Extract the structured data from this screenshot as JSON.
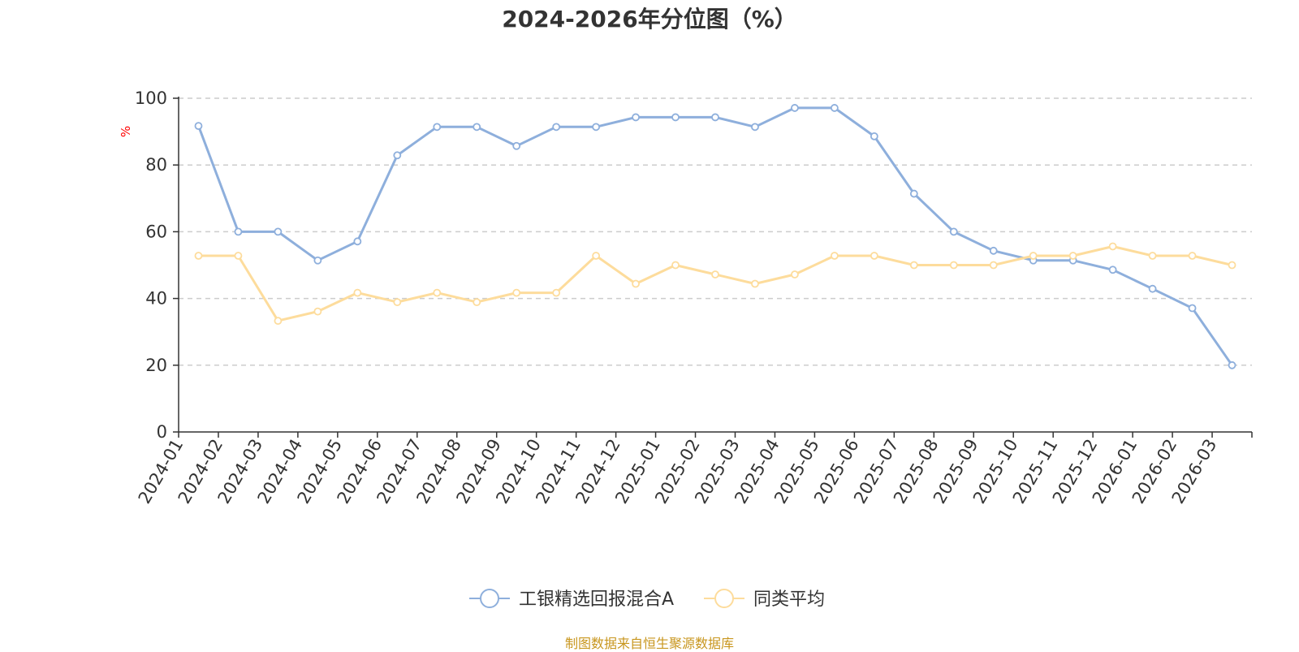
{
  "chart_data": {
    "type": "line",
    "title": "2024-2026年分位图（%）",
    "ylabel": "%",
    "xlabel": "",
    "ylim": [
      0,
      100
    ],
    "yticks": [
      0,
      20,
      40,
      60,
      80,
      100
    ],
    "grid": true,
    "legend_position": "bottom",
    "categories": [
      "2024-01",
      "2024-02",
      "2024-03",
      "2024-04",
      "2024-05",
      "2024-06",
      "2024-07",
      "2024-08",
      "2024-09",
      "2024-10",
      "2024-11",
      "2024-12",
      "2025-01",
      "2025-02",
      "2025-03",
      "2025-04",
      "2025-05",
      "2025-06",
      "2025-07",
      "2025-08",
      "2025-09",
      "2025-10",
      "2025-11",
      "2025-12",
      "2026-01",
      "2026-02",
      "2026-03"
    ],
    "series": [
      {
        "name": "工银精选回报混合A",
        "color": "#8eafdc",
        "values": [
          91.7,
          60.0,
          60.0,
          51.4,
          57.1,
          82.9,
          91.4,
          91.4,
          85.7,
          91.4,
          91.4,
          94.3,
          94.3,
          94.3,
          91.4,
          97.1,
          97.1,
          88.6,
          71.4,
          60.0,
          54.3,
          51.4,
          51.4,
          48.6,
          42.9,
          37.1,
          20.0
        ]
      },
      {
        "name": "同类平均",
        "color": "#fddc9c",
        "values": [
          52.8,
          52.8,
          33.3,
          36.1,
          41.7,
          38.9,
          41.7,
          38.9,
          41.7,
          41.7,
          52.8,
          44.4,
          50.0,
          47.2,
          44.4,
          47.2,
          52.8,
          52.8,
          50.0,
          50.0,
          50.0,
          52.8,
          52.8,
          55.6,
          52.8,
          52.8,
          50.0
        ]
      }
    ]
  },
  "footer": {
    "source": "制图数据来自恒生聚源数据库"
  }
}
